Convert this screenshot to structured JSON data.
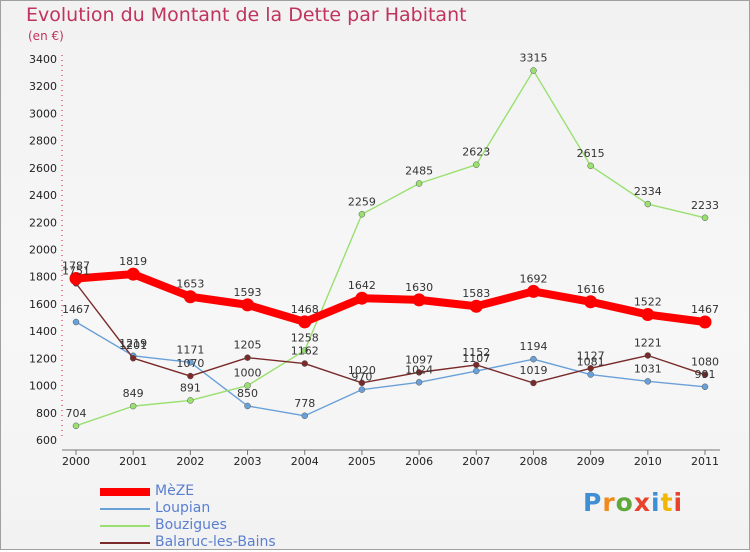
{
  "title": "Evolution du Montant de la Dette par Habitant",
  "unit_label": "(en €)",
  "logo": {
    "text": "Proxiti",
    "colors": [
      "#3f8fd4",
      "#f08a1d",
      "#5fa83a",
      "#e8422c",
      "#3f8fd4",
      "#f2b705",
      "#e8422c"
    ]
  },
  "chart_data": {
    "type": "line",
    "title": "Evolution du Montant de la Dette par Habitant",
    "ylabel": "(en €)",
    "xlabel": "",
    "x": [
      "2000",
      "2001",
      "2002",
      "2003",
      "2004",
      "2005",
      "2006",
      "2007",
      "2008",
      "2009",
      "2010",
      "2011"
    ],
    "ylim": [
      600,
      3400
    ],
    "yticks": [
      600,
      800,
      1000,
      1200,
      1400,
      1600,
      1800,
      2000,
      2200,
      2400,
      2600,
      2800,
      3000,
      3200,
      3400
    ],
    "grid": false,
    "legend": "bottom-left",
    "series": [
      {
        "name": "MèZE",
        "color": "#ff0000",
        "emphasis": true,
        "values": [
          1787,
          1819,
          1653,
          1593,
          1468,
          1642,
          1630,
          1583,
          1692,
          1616,
          1522,
          1467
        ]
      },
      {
        "name": "Loupian",
        "color": "#6aa0d8",
        "values": [
          1467,
          1219,
          1171,
          850,
          778,
          970,
          1024,
          1107,
          1194,
          1081,
          1031,
          991
        ]
      },
      {
        "name": "Bouzigues",
        "color": "#99e070",
        "values": [
          704,
          849,
          891,
          1000,
          1258,
          2259,
          2485,
          2623,
          3315,
          2615,
          2334,
          2233
        ]
      },
      {
        "name": "Balaruc-les-Bains",
        "color": "#7a2a2a",
        "values": [
          1751,
          1201,
          1070,
          1205,
          1162,
          1020,
          1097,
          1152,
          1019,
          1127,
          1221,
          1080
        ]
      }
    ]
  }
}
